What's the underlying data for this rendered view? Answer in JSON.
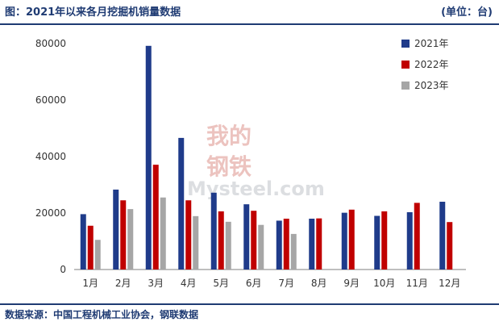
{
  "header": {
    "title": "图：2021年以来各月挖掘机销量数据",
    "unit": "(单位：台)"
  },
  "footer": {
    "source": "数据来源：中国工程机械工业协会，钢联数据"
  },
  "watermark": {
    "line1": "我的",
    "line2": "钢铁",
    "brand": "Mysteel.com"
  },
  "colors": {
    "accent": "#1f3b73",
    "series_2021": "#1f3b8a",
    "series_2022": "#c00000",
    "series_2023": "#a6a6a6"
  },
  "chart_data": {
    "type": "bar",
    "title": "",
    "xlabel": "",
    "ylabel": "",
    "ylim": [
      0,
      80000
    ],
    "yticks": [
      0,
      20000,
      40000,
      60000,
      80000
    ],
    "legend_position": "top-right",
    "categories": [
      "1月",
      "2月",
      "3月",
      "4月",
      "5月",
      "6月",
      "7月",
      "8月",
      "9月",
      "10月",
      "11月",
      "12月"
    ],
    "series": [
      {
        "name": "2021年",
        "color": "#1f3b8a",
        "values": [
          19600,
          28300,
          79200,
          46600,
          27200,
          23100,
          17300,
          18000,
          20100,
          19000,
          20300,
          24000
        ]
      },
      {
        "name": "2022年",
        "color": "#c00000",
        "values": [
          15500,
          24500,
          37100,
          24500,
          20600,
          20800,
          18000,
          18100,
          21200,
          20600,
          23600,
          16800
        ]
      },
      {
        "name": "2023年",
        "color": "#a6a6a6",
        "values": [
          10500,
          21400,
          25500,
          18900,
          16900,
          15800,
          12600,
          null,
          null,
          null,
          null,
          null
        ]
      }
    ]
  }
}
